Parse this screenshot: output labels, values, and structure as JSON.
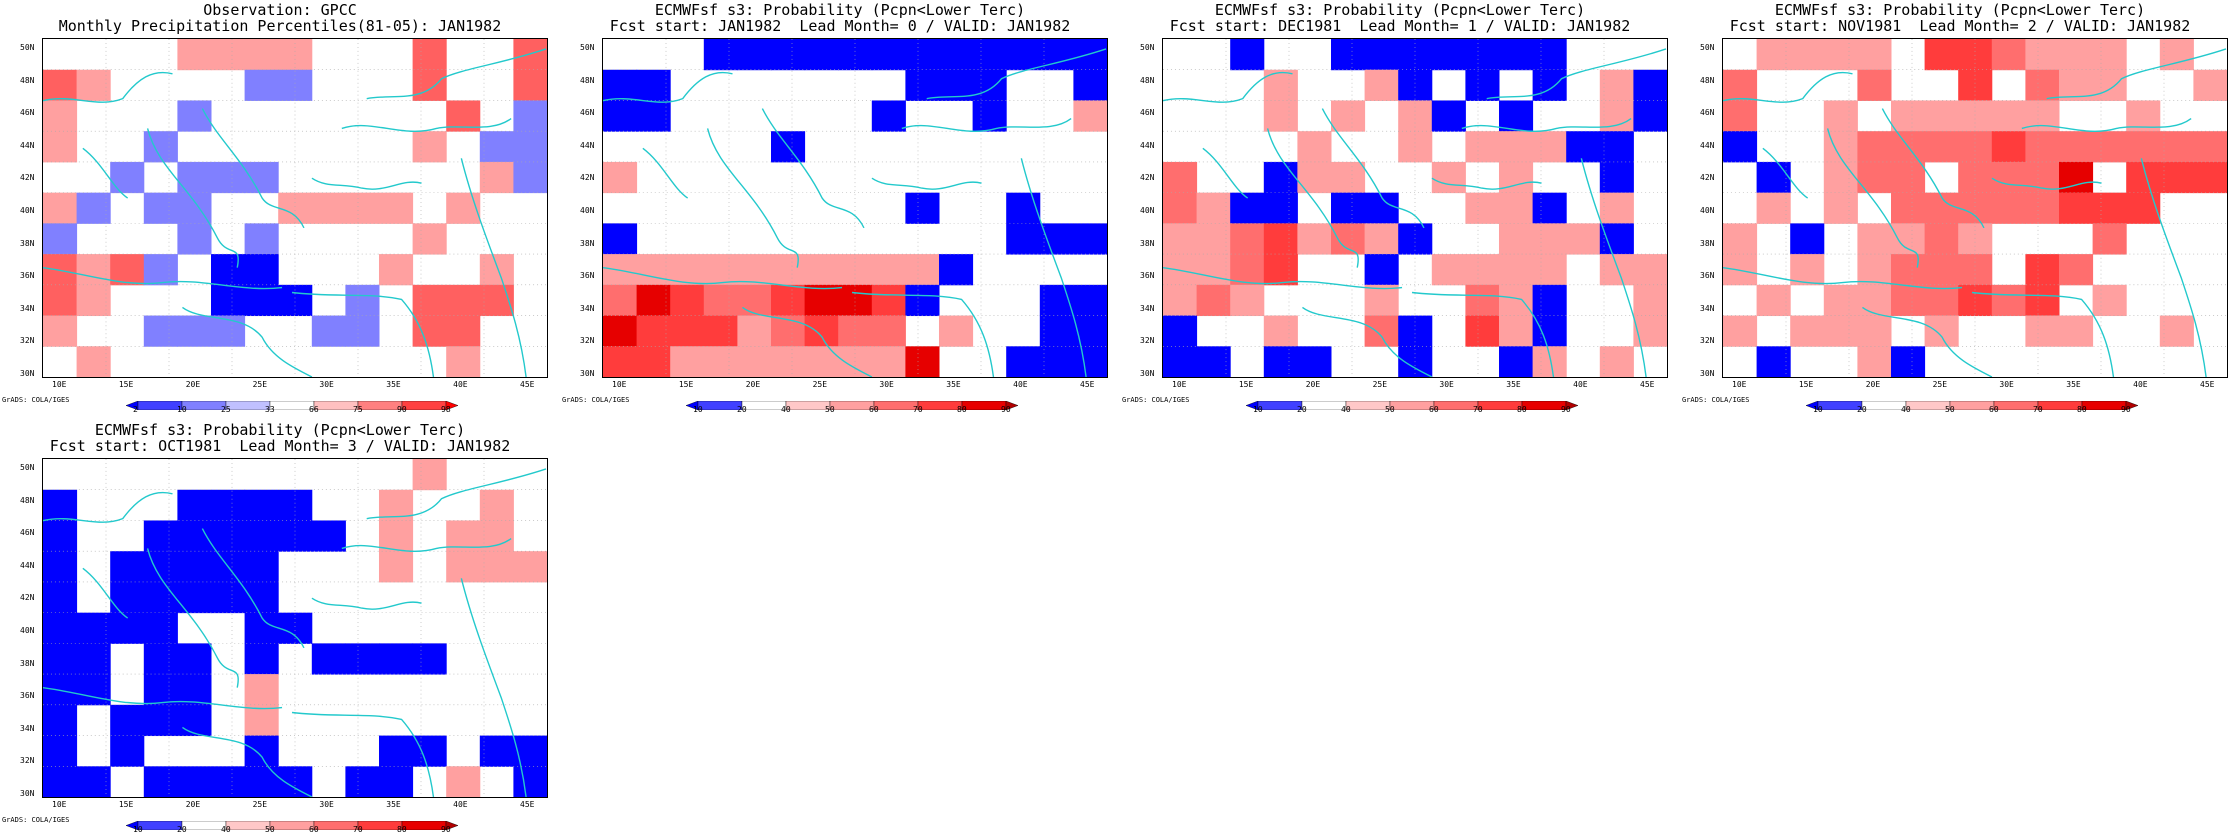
{
  "credit": "GrADS: COLA/IGES",
  "lat_labels": [
    "50N",
    "48N",
    "46N",
    "44N",
    "42N",
    "40N",
    "38N",
    "36N",
    "34N",
    "32N",
    "30N"
  ],
  "lon_labels": [
    "10E",
    "15E",
    "20E",
    "25E",
    "30E",
    "35E",
    "40E",
    "45E"
  ],
  "legend_obs": {
    "labels": [
      "2",
      "10",
      "25",
      "33",
      "66",
      "75",
      "90",
      "98"
    ],
    "colors": [
      "#0000ff",
      "#4040ff",
      "#8080ff",
      "#c0c0ff",
      "#ffffff",
      "#ffc0c0",
      "#ff8080",
      "#ff4040",
      "#ff0000"
    ]
  },
  "legend_prob": {
    "labels": [
      "10",
      "20",
      "40",
      "50",
      "60",
      "70",
      "80",
      "90"
    ],
    "colors": [
      "#0000ff",
      "#4040ff",
      "#ffffff",
      "#ffc8c8",
      "#ffa0a0",
      "#ff6e6e",
      "#ff3c3c",
      "#e60000",
      "#b00000"
    ]
  },
  "coast_color": "#23c9cc",
  "panels": [
    {
      "title1": "Observation: GPCC",
      "title2": "Monthly Precipitation Percentiles(81-05): JAN1982",
      "grid": [
        "....3333...4..4",
        "43....bb...4..4",
        "3...2.......4.a",
        "3..2.......3.ba",
        "..b.bbb......3a",
        "3a.bb..3333.3..",
        "a...b.a....3...",
        "434a.cc...3..3.",
        "43...ccc.a.444.",
        "3..aaa..2a.44..",
        ".3..........3.."
      ]
    },
    {
      "title1": "ECMWFsf s3: Probability (Pcpn<Lower Terc)",
      "title2": "Fcst start: JAN1982  Lead Month= 0 / VALID: JAN1982",
      "grid": [
        "...aaaaaaaaaaaa",
        "aa.......aaa..a",
        "aa......a..a..3",
        ".....a.........",
        "3..............",
        ".........a..a..",
        "a...........aaa",
        "3333333333a....",
        "465445665a...aa",
        "655534544.3..aa",
        "5533333336..aaa"
      ]
    },
    {
      "title1": "ECMWFsf s3: Probability (Pcpn<Lower Terc)",
      "title2": "Fcst start: DEC1981  Lead Month= 1 / VALID: JAN1982",
      "grid": [
        "..a..aaaaaaa...",
        "...3..3a.a.a.3a",
        "...3.3.3a.a..3a",
        "....3..3.333aa.",
        "4..a33..3.3..a.",
        "43aa.aa..33a.3.",
        "3345343a..333a.",
        "3345..a.3333.33",
        "343...3..43a..3",
        "a..3..4a.53a..3",
        "aa.aa..a..a3.3."
      ]
    },
    {
      "title1": "ECMWFsf s3: Probability (Pcpn<Lower Terc)",
      "title2": "Fcst start: NOV1981  Lead Month= 2 / VALID: JAN1982",
      "grid": [
        ".3333.554333.3.",
        "4...4..5.433..3",
        "4..3.33333..3..",
        "a..3444454444444",
        ".a.344.4446.555",
        ".3.3.44444555..",
        "3.a.3343...4...",
        "3.3.3444.54....",
        ".3.3344545.3...",
        "3.333.3..33..3.",
        ".a..3a.........3"
      ]
    },
    {
      "title1": "ECMWFsf s3: Probability (Pcpn<Lower Terc)",
      "title2": "Fcst start: OCT1981  Lead Month= 3 / VALID: JAN1982",
      "grid": [
        "...........3...",
        "a...aaaa..3..3.",
        "a..aaaaaa.3.33.",
        "a.aaaaa...3.333",
        "a.aaaaa.........",
        "aaaa..aa.......",
        "aa.aa.a.aaaa....",
        "aa.aa.3........",
        "a.aaa.3.......",
        "a.a...a...aa.aa",
        "aa.aaaaa.aa.3.a"
      ]
    }
  ]
}
